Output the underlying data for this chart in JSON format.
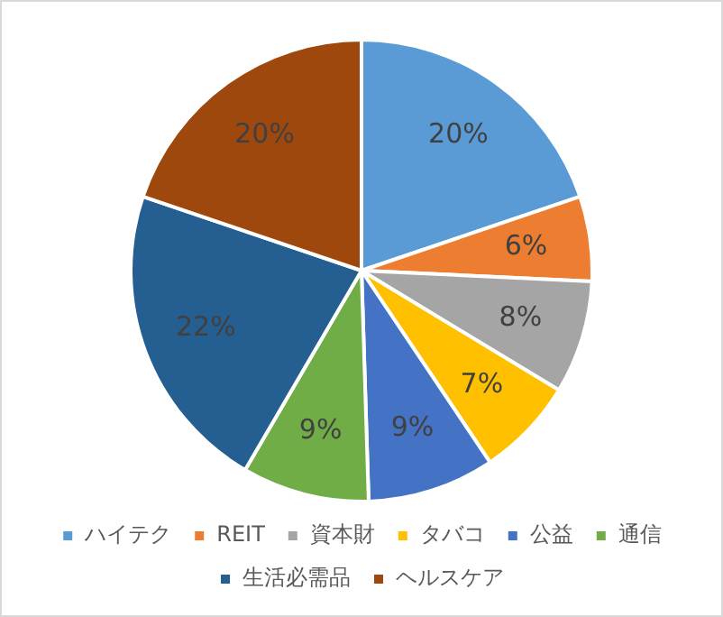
{
  "chart_data": {
    "type": "pie",
    "categories": [
      "ハイテク",
      "REIT",
      "資本財",
      "タバコ",
      "公益",
      "通信",
      "生活必需品",
      "ヘルスケア"
    ],
    "values": [
      20,
      6,
      8,
      7,
      9,
      9,
      22,
      20
    ],
    "colors": [
      "#5b9bd5",
      "#ed7d31",
      "#a5a5a5",
      "#ffc000",
      "#4472c4",
      "#70ad47",
      "#255e91",
      "#9e480e"
    ],
    "value_labels": [
      "20%",
      "6%",
      "8%",
      "7%",
      "9%",
      "9%",
      "22%",
      "20%"
    ],
    "legend": "bottom"
  }
}
